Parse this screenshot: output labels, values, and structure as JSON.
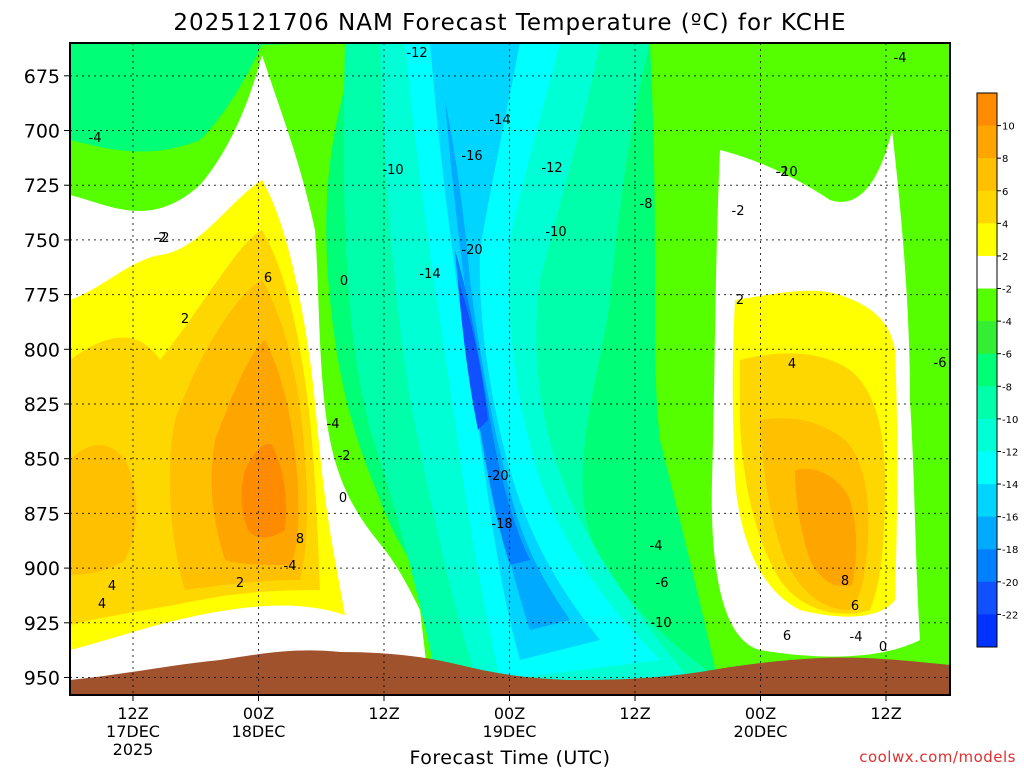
{
  "chart_data": {
    "type": "heatmap",
    "title": "2025121706 NAM Forecast Temperature (ºC) for KCHE",
    "xlabel": "Forecast Time (UTC)",
    "ylabel": "",
    "y_axis": "pressure (hPa), inverted",
    "ylim": [
      958,
      660
    ],
    "y_ticks": [
      "675",
      "700",
      "725",
      "750",
      "775",
      "800",
      "825",
      "850",
      "875",
      "900",
      "925",
      "950"
    ],
    "x_ticks": [
      {
        "label": "12Z",
        "date": "17DEC",
        "year": "2025"
      },
      {
        "label": "00Z",
        "date": "18DEC",
        "year": ""
      },
      {
        "label": "12Z",
        "date": "",
        "year": ""
      },
      {
        "label": "00Z",
        "date": "19DEC",
        "year": ""
      },
      {
        "label": "12Z",
        "date": "",
        "year": ""
      },
      {
        "label": "00Z",
        "date": "20DEC",
        "year": ""
      },
      {
        "label": "12Z",
        "date": "",
        "year": ""
      }
    ],
    "grid": true,
    "colorbar": {
      "labels": [
        "10",
        "8",
        "6",
        "4",
        "2",
        "-2",
        "-4",
        "-6",
        "-8",
        "-10",
        "-12",
        "-14",
        "-16",
        "-18",
        "-20",
        "-22"
      ],
      "colors": [
        "#ff8c00",
        "#ffa500",
        "#ffc000",
        "#ffd700",
        "#ffff00",
        "#ffffff",
        "#55ff00",
        "#33ee33",
        "#00ff77",
        "#00ffaa",
        "#00ffd5",
        "#00ffff",
        "#00d5ff",
        "#00aaff",
        "#0080ff",
        "#1050ff",
        "#0033ff"
      ]
    },
    "contour_labels": [
      "-12",
      "-4",
      "-4",
      "-14",
      "-16",
      "-12",
      "-10",
      "-10",
      "-8",
      "-10",
      "-2",
      "-2",
      "0",
      "-2",
      "2",
      "-20",
      "-14",
      "6",
      "2",
      "4",
      "-6",
      "-4",
      "-2",
      "-20",
      "0",
      "-18",
      "8",
      "-4",
      "-6",
      "4",
      "8",
      "6",
      "-10",
      "-4",
      "4",
      "2",
      "6",
      "-4",
      "0",
      "-2"
    ]
  },
  "credit": "coolwx.com/models"
}
